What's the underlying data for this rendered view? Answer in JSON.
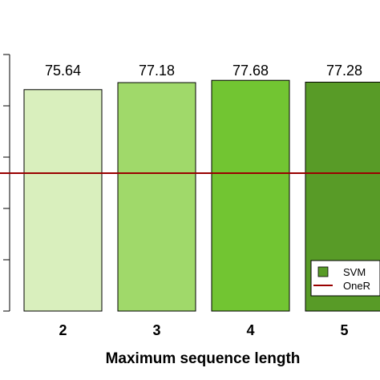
{
  "chart_data": {
    "type": "bar",
    "categories": [
      "2",
      "3",
      "4",
      "5"
    ],
    "series": [
      {
        "name": "SVM",
        "values": [
          75.64,
          77.18,
          77.68,
          77.28
        ],
        "colors": [
          "#d9efbd",
          "#a0d96a",
          "#72c532",
          "#589b27"
        ]
      }
    ],
    "data_labels": [
      "75.64",
      "77.18",
      "77.68",
      "77.28"
    ],
    "baseline": {
      "name": "OneR",
      "value": 57.3,
      "color": "#990000"
    },
    "xlabel": "Maximum sequence length",
    "ylabel": "",
    "ylim": [
      27,
      83
    ],
    "legend": {
      "placement": "bottom-right",
      "entries": [
        {
          "label": "SVM",
          "kind": "box",
          "color": "#589b27"
        },
        {
          "label": "OneR",
          "kind": "line",
          "color": "#990000"
        }
      ]
    },
    "grid": false
  }
}
